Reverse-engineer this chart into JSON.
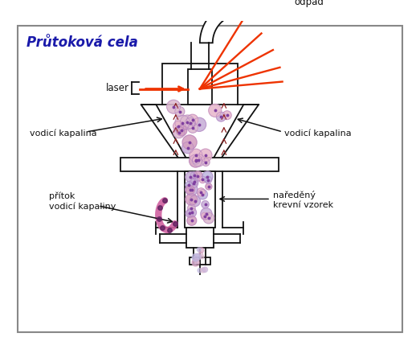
{
  "title": "Průtoková cela",
  "title_color": "#1a1aaa",
  "title_fontsize": 12,
  "bg_color": "#ffffff",
  "label_laser": "laser",
  "label_odpad": "odpad",
  "label_vodici_left": "vodicí kapalina",
  "label_vodici_right": "vodicí kapalina",
  "label_pritok": "přítok\nvodicí kapaliny",
  "label_naredeny": "naředěný\nkrevní vzorek",
  "line_color": "#111111",
  "laser_color": "#ee3300",
  "dashed_color": "#8B2020",
  "cell_colors": [
    "#e8b8cc",
    "#d4a0c0",
    "#c8b0d8",
    "#ddbbd0",
    "#c0b8e0"
  ],
  "dot_color": "#8040a0",
  "pink_tube_color": "#d060a0"
}
